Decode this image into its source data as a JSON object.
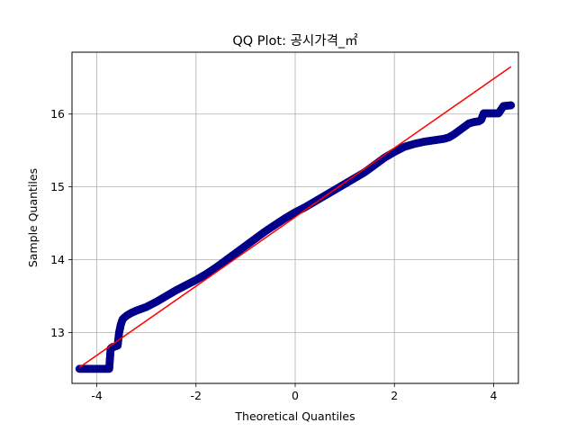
{
  "chart_data": {
    "type": "scatter",
    "title": "QQ Plot: 공시가격_㎡",
    "xlabel": "Theoretical Quantiles",
    "ylabel": "Sample Quantiles",
    "xlim": [
      -4.5,
      4.5
    ],
    "ylim": [
      12.3,
      16.85
    ],
    "xticks": [
      -4,
      -2,
      0,
      2,
      4
    ],
    "xtick_labels": [
      "-4",
      "-2",
      "0",
      "2",
      "4"
    ],
    "yticks": [
      13,
      14,
      15,
      16
    ],
    "ytick_labels": [
      "13",
      "14",
      "15",
      "16"
    ],
    "grid": true,
    "point_color": "#00008b",
    "line_color": "#ff0000",
    "reference_line": {
      "x": [
        -4.35,
        4.35
      ],
      "y": [
        12.52,
        16.65
      ]
    },
    "series": [
      {
        "x": [
          -4.35,
          -4.2,
          -4.1,
          -4.0,
          -3.9,
          -3.8,
          -3.75,
          -3.72,
          -3.7,
          -3.68,
          -3.66,
          -3.62,
          -3.58,
          -3.55,
          -3.53,
          -3.52,
          -3.5,
          -3.48,
          -3.45,
          -3.4,
          -3.3,
          -3.2,
          -3.0,
          -2.8,
          -2.6,
          -2.4,
          -2.2,
          -2.0,
          -1.8,
          -1.6,
          -1.4,
          -1.2,
          -1.0,
          -0.8,
          -0.6,
          -0.4,
          -0.2,
          0.0,
          0.2,
          0.4,
          0.6,
          0.8,
          1.0,
          1.2,
          1.4,
          1.6,
          1.8,
          2.0,
          2.2,
          2.4,
          2.6,
          2.8,
          3.0,
          3.1,
          3.2,
          3.3,
          3.4,
          3.5,
          3.6,
          3.7,
          3.75,
          3.8,
          3.9,
          4.0,
          4.1,
          4.2,
          4.35
        ],
        "y": [
          12.5,
          12.5,
          12.5,
          12.5,
          12.5,
          12.5,
          12.5,
          12.78,
          12.79,
          12.8,
          12.8,
          12.81,
          12.82,
          13.0,
          13.06,
          13.1,
          13.14,
          13.18,
          13.2,
          13.23,
          13.27,
          13.3,
          13.35,
          13.42,
          13.5,
          13.58,
          13.65,
          13.72,
          13.8,
          13.89,
          13.99,
          14.09,
          14.19,
          14.29,
          14.39,
          14.48,
          14.57,
          14.65,
          14.72,
          14.8,
          14.88,
          14.96,
          15.04,
          15.12,
          15.2,
          15.3,
          15.4,
          15.48,
          15.55,
          15.59,
          15.62,
          15.64,
          15.66,
          15.68,
          15.72,
          15.77,
          15.82,
          15.87,
          15.89,
          15.9,
          15.92,
          16.01,
          16.01,
          16.01,
          16.01,
          16.11,
          16.12
        ]
      }
    ]
  }
}
